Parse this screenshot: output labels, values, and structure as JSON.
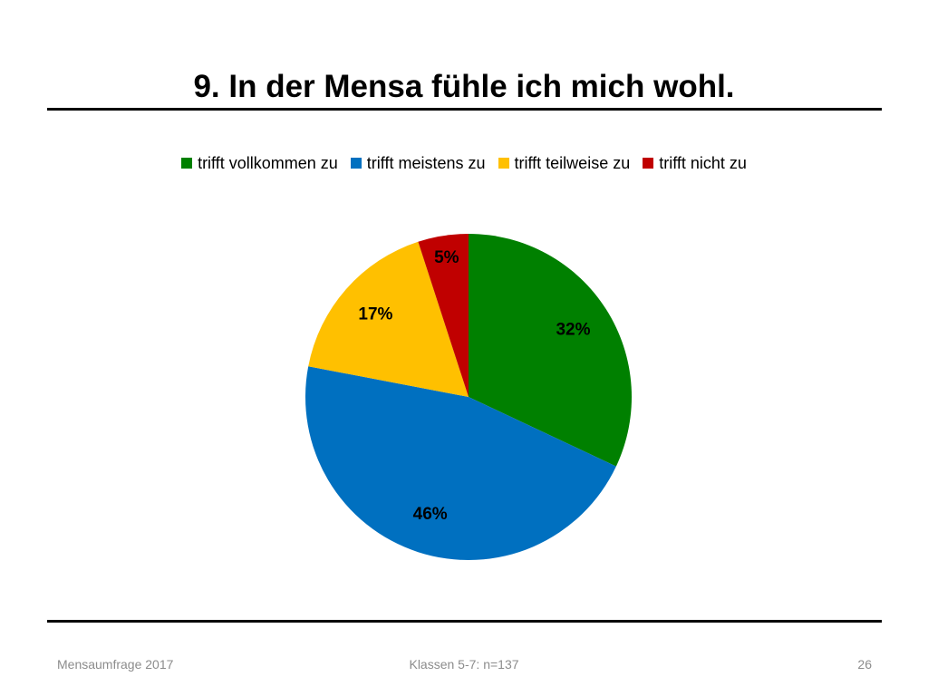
{
  "slide": {
    "title": "9. In der Mensa fühle ich mich wohl."
  },
  "footer": {
    "left": "Mensaumfrage 2017",
    "center": "Klassen 5-7: n=137",
    "page_number": "26"
  },
  "chart_data": {
    "type": "pie",
    "title": "",
    "legend_position": "top",
    "labels_format": "percent",
    "categories": [
      "trifft vollkommen zu",
      "trifft meistens zu",
      "trifft teilweise zu",
      "trifft nicht zu"
    ],
    "values": [
      32,
      46,
      17,
      5
    ],
    "value_labels": [
      "32%",
      "46%",
      "17%",
      "5%"
    ],
    "colors": [
      "#008000",
      "#0070C0",
      "#FFC000",
      "#C00000"
    ]
  }
}
